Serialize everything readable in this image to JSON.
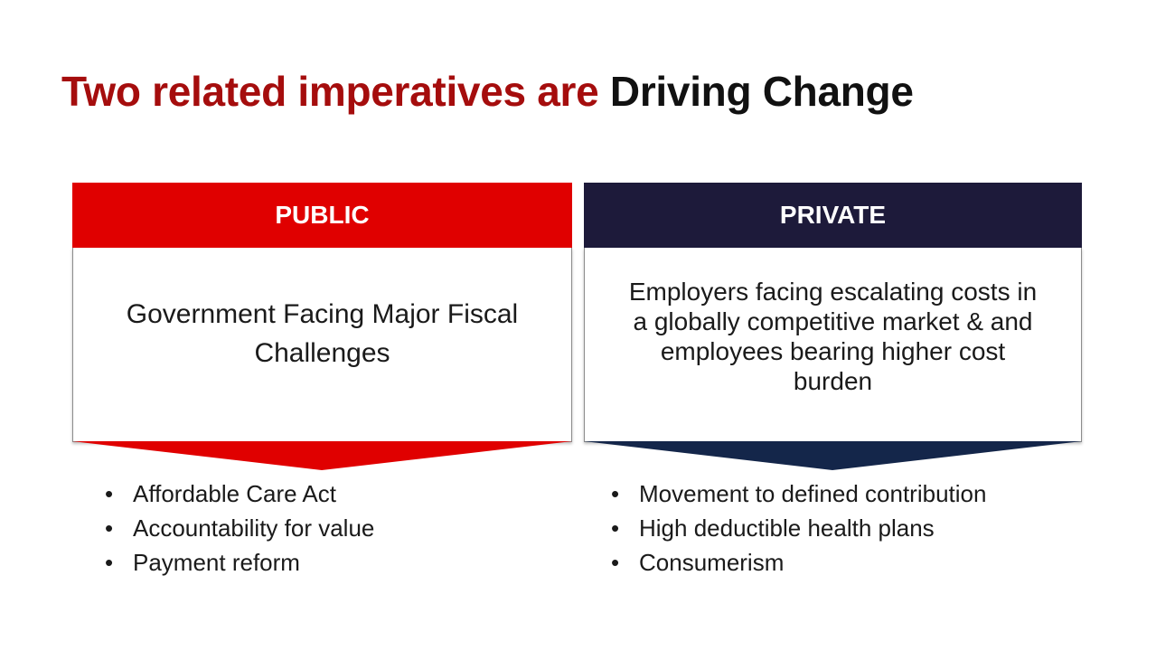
{
  "title": {
    "part1": "Two related imperatives are",
    "part2": "Driving Change"
  },
  "public": {
    "header": "PUBLIC",
    "body": "Government Facing Major Fiscal Challenges",
    "bullets": [
      "Affordable Care Act",
      "Accountability for value",
      "Payment reform"
    ]
  },
  "private": {
    "header": "PRIVATE",
    "body": "Employers facing escalating costs in a globally competitive market & and employees bearing higher cost burden",
    "bullets": [
      "Movement to defined contribution",
      "High deductible health plans",
      "Consumerism"
    ]
  },
  "colors": {
    "title_accent": "#a50d0d",
    "public_header": "#e00000",
    "private_header": "#1d1a3a",
    "public_chevron": "#e00000",
    "private_chevron": "#14264a"
  },
  "bullet_char": "•"
}
